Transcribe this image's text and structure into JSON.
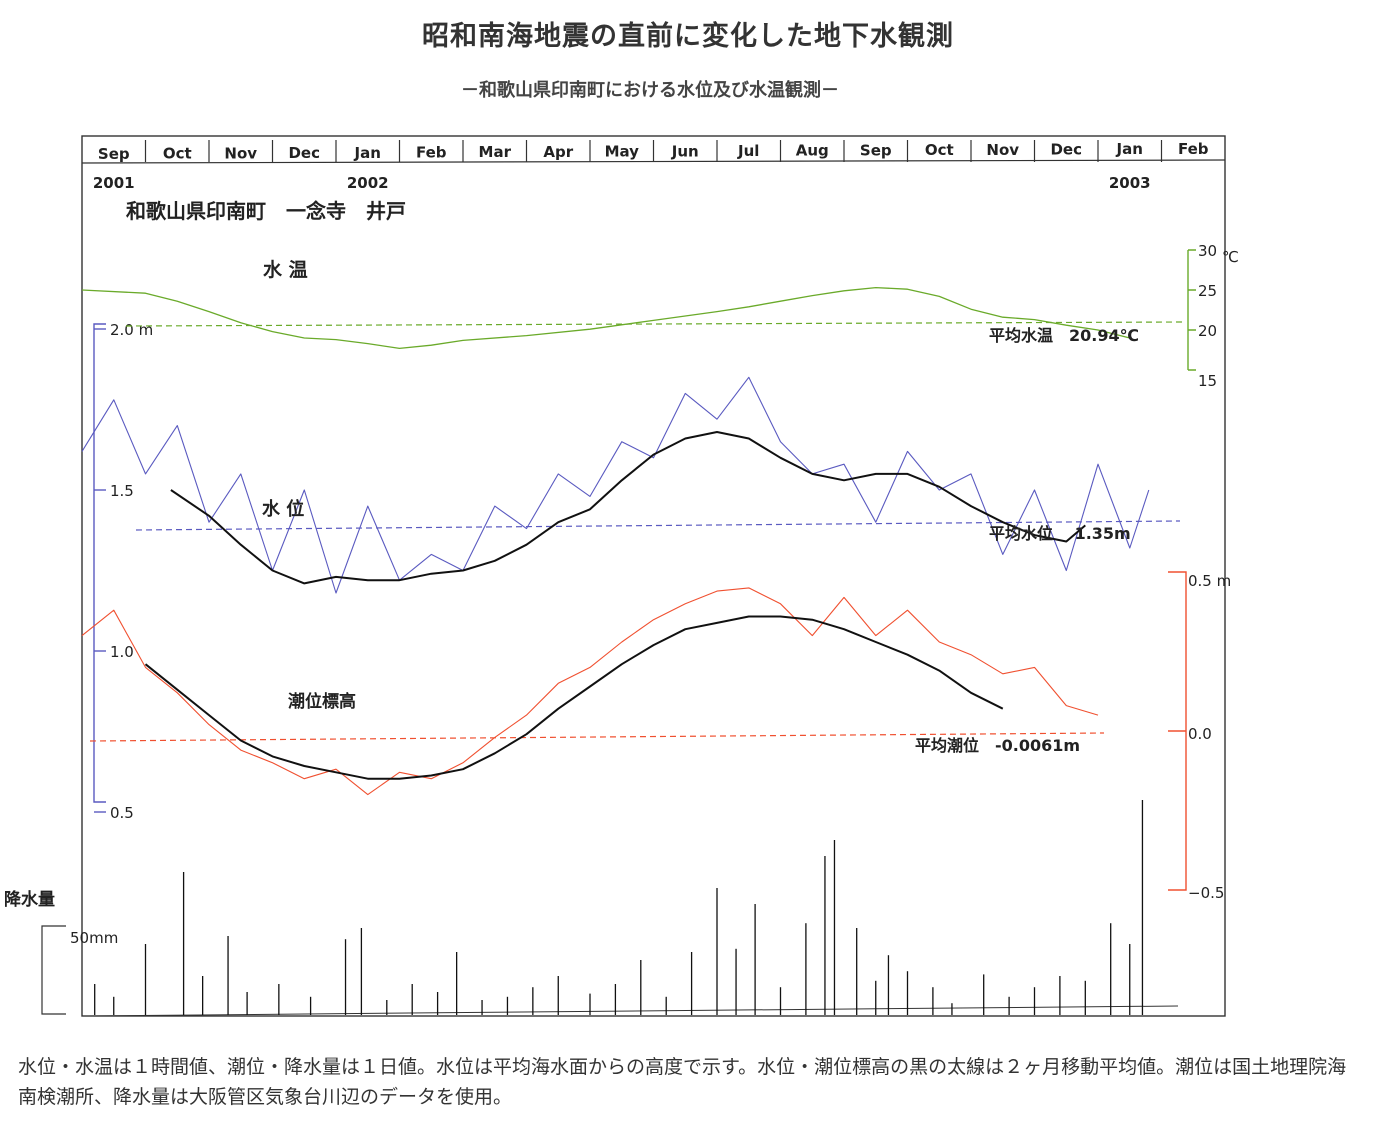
{
  "title": "昭和南海地震の直前に変化した地下水観測",
  "subtitle": "－和歌山県印南町における水位及び水温観測－",
  "caption": "水位・水温は１時間値、潮位・降水量は１日値。水位は平均海水面からの高度で示す。水位・潮位標高の黒の太線は２ヶ月移動平均値。潮位は国土地理院海南検潮所、降水量は大阪管区気象台川辺のデータを使用。",
  "chart_data": {
    "type": "line",
    "station": "和歌山県印南町　一念寺　井戸",
    "months": [
      "Sep",
      "Oct",
      "Nov",
      "Dec",
      "Jan",
      "Feb",
      "Mar",
      "Apr",
      "May",
      "Jun",
      "Jul",
      "Aug",
      "Sep",
      "Oct",
      "Nov",
      "Dec",
      "Jan",
      "Feb"
    ],
    "years": [
      {
        "label": "2001",
        "month_index": 0
      },
      {
        "label": "2002",
        "month_index": 4
      },
      {
        "label": "2003",
        "month_index": 16
      }
    ],
    "colors": {
      "temp": "#6aaa2a",
      "level": "#5a5ac0",
      "tide": "#f05030",
      "avg": "#111111",
      "rain": "#111111"
    },
    "left_axis": {
      "ticks": [
        "2.0 m",
        "1.5",
        "1.0",
        "0.5"
      ],
      "values": [
        2.0,
        1.5,
        1.0,
        0.5
      ]
    },
    "temp_axis": {
      "ticks": [
        "30",
        "25",
        "20",
        "15"
      ],
      "values": [
        30,
        25,
        20,
        15
      ],
      "unit": "℃"
    },
    "tide_axis": {
      "ticks": [
        "0.5 m",
        "0.0",
        "−0.5"
      ],
      "values": [
        0.5,
        0.0,
        -0.5
      ]
    },
    "rain_axis": {
      "label": "降水量",
      "tick": "50mm"
    },
    "series_labels": {
      "temp": "水 温",
      "level": "水 位",
      "tide": "潮位標高"
    },
    "reference_lines": {
      "temp_mean": {
        "label": "平均水温　20.94℃",
        "value": 20.94
      },
      "level_mean": {
        "label": "平均水位　 1.35m",
        "value": 1.35
      },
      "tide_mean": {
        "label": "平均潮位　-0.0061m",
        "value": -0.0061
      }
    },
    "series": [
      {
        "name": "水温",
        "unit": "℃",
        "x_month": [
          0,
          1,
          1.5,
          2,
          2.5,
          3,
          3.5,
          4,
          4.5,
          5,
          5.5,
          6,
          7,
          8,
          9,
          10,
          10.5,
          11,
          11.5,
          12,
          12.5,
          13,
          13.5,
          14,
          14.5,
          15,
          15.5,
          16,
          16.5
        ],
        "values": [
          25.0,
          24.6,
          23.6,
          22.3,
          20.9,
          19.8,
          19.0,
          18.8,
          18.3,
          17.7,
          18.1,
          18.7,
          19.3,
          20.1,
          21.2,
          22.3,
          22.9,
          23.6,
          24.3,
          24.9,
          25.3,
          25.1,
          24.2,
          22.6,
          21.6,
          21.3,
          20.6,
          20.0,
          19.0
        ]
      },
      {
        "name": "水位",
        "unit": "m",
        "x_month": [
          0,
          0.5,
          1,
          1.5,
          2,
          2.5,
          3,
          3.5,
          4,
          4.5,
          5,
          5.5,
          6,
          6.5,
          7,
          7.5,
          8,
          8.5,
          9,
          9.5,
          10,
          10.5,
          11,
          11.5,
          12,
          12.5,
          13,
          13.5,
          14,
          14.5,
          15,
          15.5,
          16,
          16.5,
          16.8
        ],
        "values": [
          1.62,
          1.78,
          1.55,
          1.7,
          1.4,
          1.55,
          1.25,
          1.5,
          1.18,
          1.45,
          1.22,
          1.3,
          1.25,
          1.45,
          1.38,
          1.55,
          1.48,
          1.65,
          1.6,
          1.8,
          1.72,
          1.85,
          1.65,
          1.55,
          1.58,
          1.4,
          1.62,
          1.5,
          1.55,
          1.3,
          1.5,
          1.25,
          1.58,
          1.32,
          1.5
        ]
      },
      {
        "name": "水位 2ヶ月移動平均",
        "unit": "m",
        "x_month": [
          1.4,
          2,
          2.5,
          3,
          3.5,
          4,
          4.5,
          5,
          5.5,
          6,
          6.5,
          7,
          7.5,
          8,
          8.5,
          9,
          9.5,
          10,
          10.5,
          11,
          11.5,
          12,
          12.5,
          13,
          13.5,
          14,
          14.5,
          15,
          15.5,
          15.8
        ],
        "values": [
          1.5,
          1.42,
          1.33,
          1.25,
          1.21,
          1.23,
          1.22,
          1.22,
          1.24,
          1.25,
          1.28,
          1.33,
          1.4,
          1.44,
          1.53,
          1.61,
          1.66,
          1.68,
          1.66,
          1.6,
          1.55,
          1.53,
          1.55,
          1.55,
          1.51,
          1.45,
          1.4,
          1.36,
          1.34,
          1.39
        ]
      },
      {
        "name": "潮位標高",
        "unit": "m",
        "x_month": [
          0,
          0.5,
          1,
          1.5,
          2,
          2.5,
          3,
          3.5,
          4,
          4.5,
          5,
          5.5,
          6,
          6.5,
          7,
          7.5,
          8,
          8.5,
          9,
          9.5,
          10,
          10.5,
          11,
          11.5,
          12,
          12.5,
          13,
          13.5,
          14,
          14.5,
          15,
          15.5,
          16
        ],
        "values": [
          0.3,
          0.38,
          0.2,
          0.12,
          0.02,
          -0.06,
          -0.1,
          -0.15,
          -0.12,
          -0.2,
          -0.13,
          -0.15,
          -0.1,
          -0.02,
          0.05,
          0.15,
          0.2,
          0.28,
          0.35,
          0.4,
          0.44,
          0.45,
          0.4,
          0.3,
          0.42,
          0.3,
          0.38,
          0.28,
          0.24,
          0.18,
          0.2,
          0.08,
          0.05
        ]
      },
      {
        "name": "潮位 2ヶ月移動平均",
        "unit": "m",
        "x_month": [
          1,
          1.5,
          2,
          2.5,
          3,
          3.5,
          4,
          4.5,
          5,
          5.5,
          6,
          6.5,
          7,
          7.5,
          8,
          8.5,
          9,
          9.5,
          10,
          10.5,
          11,
          11.5,
          12,
          12.5,
          13,
          13.5,
          14,
          14.5
        ],
        "values": [
          0.21,
          0.13,
          0.05,
          -0.03,
          -0.08,
          -0.11,
          -0.13,
          -0.15,
          -0.15,
          -0.14,
          -0.12,
          -0.07,
          -0.01,
          0.07,
          0.14,
          0.21,
          0.27,
          0.32,
          0.34,
          0.36,
          0.36,
          0.35,
          0.32,
          0.28,
          0.24,
          0.19,
          0.12,
          0.07
        ]
      }
    ],
    "rain_mm": {
      "x_month": [
        0.2,
        0.5,
        1.0,
        1.6,
        1.9,
        2.3,
        2.6,
        3.1,
        3.6,
        4.15,
        4.4,
        4.8,
        5.2,
        5.6,
        5.9,
        6.3,
        6.7,
        7.1,
        7.5,
        8.0,
        8.4,
        8.8,
        9.2,
        9.6,
        10.0,
        10.3,
        10.6,
        11.0,
        11.4,
        11.7,
        11.85,
        12.2,
        12.5,
        12.7,
        13.0,
        13.4,
        13.7,
        14.2,
        14.6,
        15.0,
        15.4,
        15.8,
        16.2,
        16.5,
        16.7
      ],
      "values": [
        20,
        12,
        45,
        90,
        25,
        50,
        15,
        20,
        12,
        48,
        55,
        10,
        20,
        15,
        40,
        10,
        12,
        18,
        25,
        14,
        20,
        35,
        12,
        40,
        80,
        42,
        70,
        18,
        58,
        100,
        110,
        55,
        22,
        38,
        28,
        18,
        8,
        26,
        12,
        18,
        25,
        22,
        58,
        45,
        135
      ]
    }
  }
}
